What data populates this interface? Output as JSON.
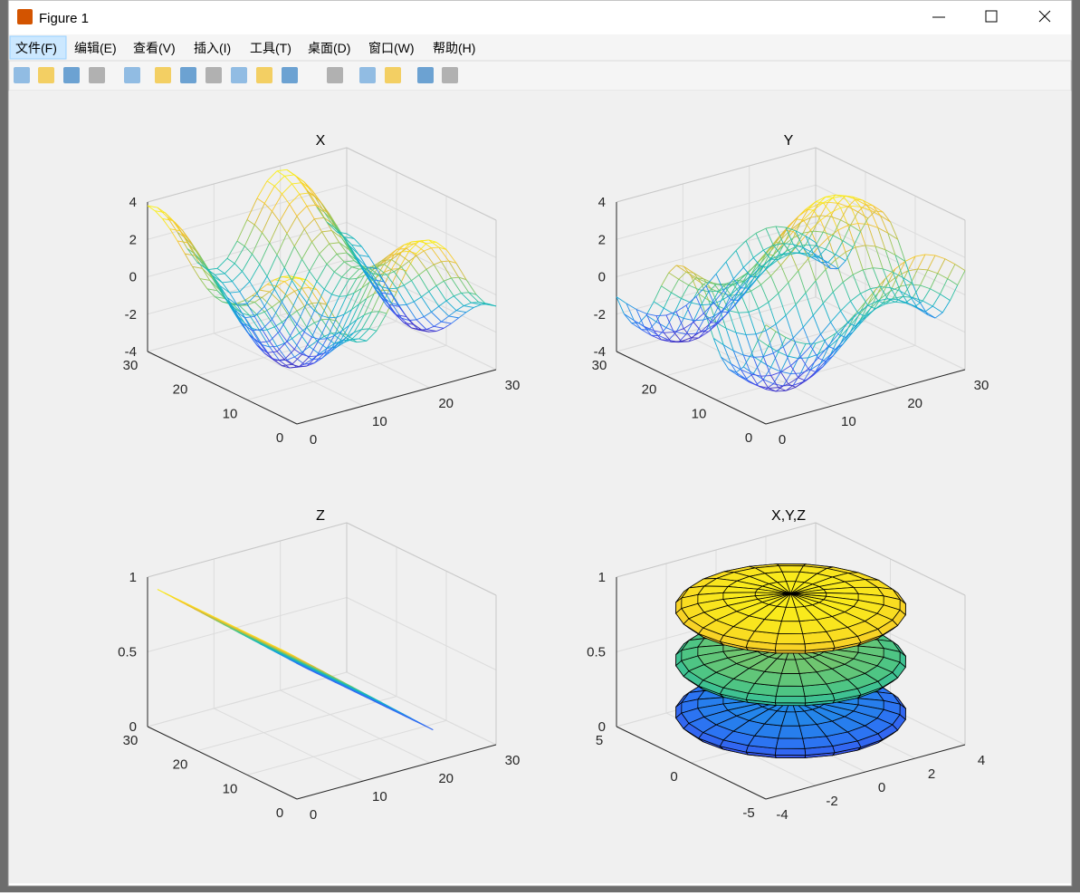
{
  "window": {
    "title": "Figure 1"
  },
  "menu": [
    "文件(F)",
    "编辑(E)",
    "查看(V)",
    "插入(I)",
    "工具(T)",
    "桌面(D)",
    "窗口(W)",
    "帮助(H)"
  ],
  "axes": [
    {
      "title": "X",
      "style": "mesh",
      "xlim": [
        0,
        30
      ],
      "ylim": [
        0,
        30
      ],
      "zlim": [
        -4,
        4
      ],
      "xticks": [
        0,
        10,
        20,
        30
      ],
      "yticks": [
        0,
        10,
        20,
        30
      ],
      "zticks": [
        -4,
        -2,
        0,
        2,
        4
      ]
    },
    {
      "title": "Y",
      "style": "mesh",
      "xlim": [
        0,
        30
      ],
      "ylim": [
        0,
        30
      ],
      "zlim": [
        -4,
        4
      ],
      "xticks": [
        0,
        10,
        20,
        30
      ],
      "yticks": [
        0,
        10,
        20,
        30
      ],
      "zticks": [
        -4,
        -2,
        0,
        2,
        4
      ]
    },
    {
      "title": "Z",
      "style": "mesh",
      "xlim": [
        0,
        30
      ],
      "ylim": [
        0,
        30
      ],
      "zlim": [
        0,
        1
      ],
      "xticks": [
        0,
        10,
        20,
        30
      ],
      "yticks": [
        0,
        10,
        20,
        30
      ],
      "zticks": [
        0,
        0.5,
        1
      ]
    },
    {
      "title": "X,Y,Z",
      "style": "surf",
      "xlim": [
        -4,
        4
      ],
      "ylim": [
        -5,
        5
      ],
      "zlim": [
        0,
        1
      ],
      "xticks": [
        -4,
        -2,
        0,
        2,
        4
      ],
      "yticks": [
        -5,
        0,
        5
      ],
      "zticks": [
        0,
        0.5,
        1
      ]
    }
  ]
}
